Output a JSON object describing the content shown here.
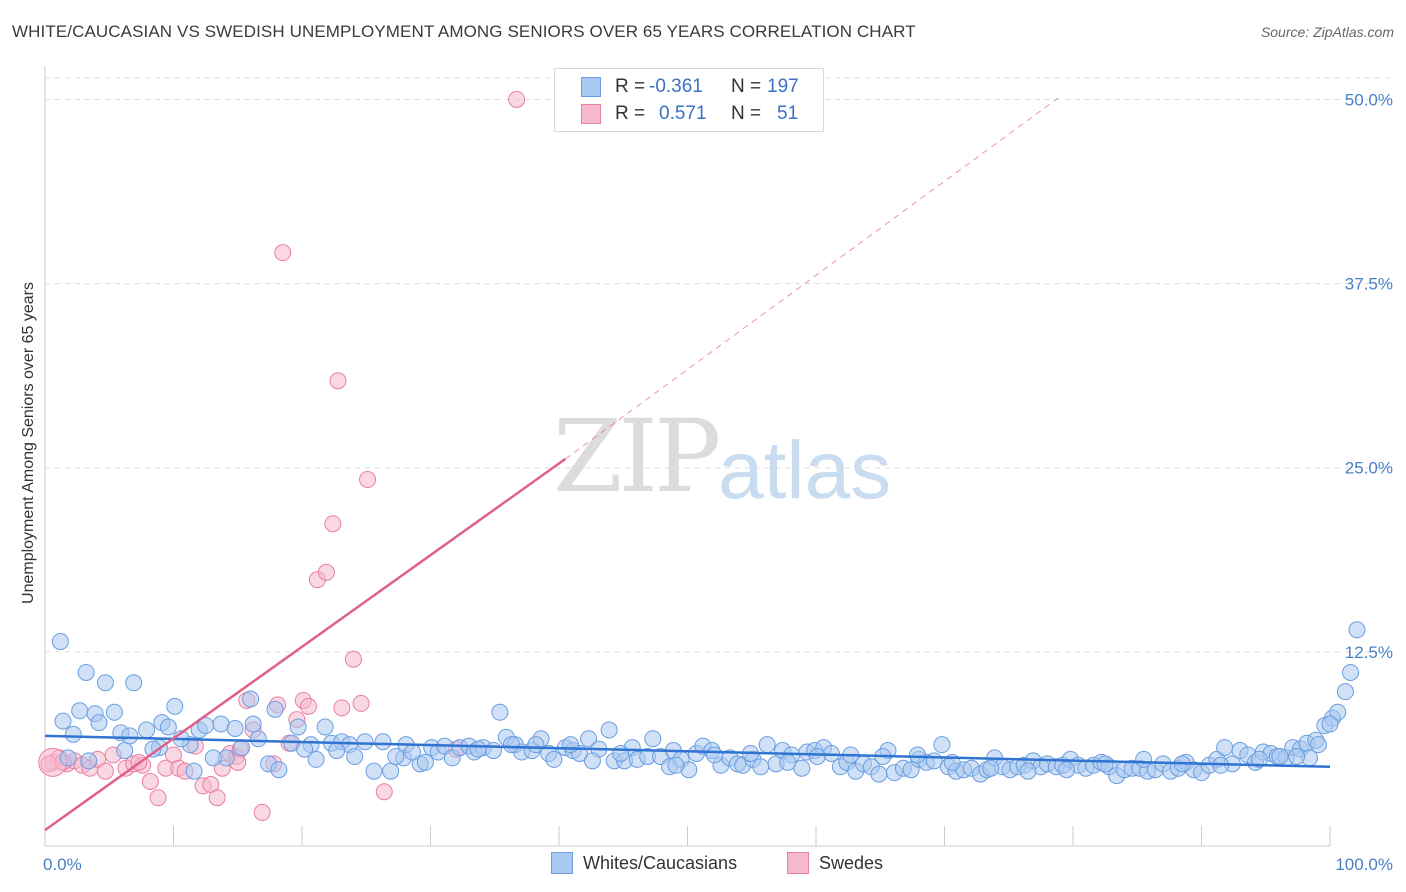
{
  "title": "WHITE/CAUCASIAN VS SWEDISH UNEMPLOYMENT AMONG SENIORS OVER 65 YEARS CORRELATION CHART",
  "source": "Source: ZipAtlas.com",
  "watermark": {
    "zip": "ZIP",
    "atlas": "atlas"
  },
  "legend": {
    "rows": [
      {
        "r_label": "R =",
        "r_value": "-0.361",
        "n_label": "N =",
        "n_value": "197"
      },
      {
        "r_label": "R =",
        "r_value": "0.571",
        "n_label": "N =",
        "n_value": "51"
      }
    ]
  },
  "bottom_legend": {
    "series1": "Whites/Caucasians",
    "series2": "Swedes"
  },
  "colors": {
    "blue_fill": "#a9c8f0",
    "blue_stroke": "#6a9ee0",
    "blue_line": "#2f74d0",
    "pink_fill": "#f6b8cc",
    "pink_stroke": "#e8809f",
    "pink_line": "#e0608a",
    "grid": "#dddddd",
    "tick_text": "#4a7fc8"
  },
  "chart_data": {
    "type": "scatter",
    "title": "WHITE/CAUCASIAN VS SWEDISH UNEMPLOYMENT AMONG SENIORS OVER 65 YEARS CORRELATION CHART",
    "xlabel": "",
    "ylabel": "Unemployment Among Seniors over 65 years",
    "xlim": [
      0,
      100
    ],
    "ylim": [
      0,
      52
    ],
    "x_tick_labels": [
      "0.0%",
      "100.0%"
    ],
    "y_ticks": [
      12.5,
      25.0,
      37.5,
      50.0
    ],
    "y_tick_labels": [
      "12.5%",
      "25.0%",
      "37.5%",
      "50.0%"
    ],
    "series": [
      {
        "name": "Whites/Caucasians",
        "r": -0.361,
        "n": 197,
        "trend": {
          "x0": 0,
          "y0": 6.8,
          "x1": 100,
          "y1": 4.7
        },
        "points": [
          [
            1.2,
            13.2
          ],
          [
            2.2,
            6.9
          ],
          [
            1.4,
            7.8
          ],
          [
            3.2,
            11.1
          ],
          [
            4.7,
            10.4
          ],
          [
            6.9,
            10.4
          ],
          [
            2.7,
            8.5
          ],
          [
            3.9,
            8.3
          ],
          [
            4.2,
            7.7
          ],
          [
            5.4,
            8.4
          ],
          [
            5.9,
            7.0
          ],
          [
            6.6,
            6.8
          ],
          [
            7.9,
            7.2
          ],
          [
            9.1,
            7.7
          ],
          [
            10.1,
            8.8
          ],
          [
            8.9,
            6.0
          ],
          [
            8.4,
            5.9
          ],
          [
            9.6,
            7.4
          ],
          [
            12.0,
            7.2
          ],
          [
            12.5,
            7.5
          ],
          [
            11.3,
            6.2
          ],
          [
            11.6,
            4.4
          ],
          [
            13.7,
            7.6
          ],
          [
            14.8,
            7.3
          ],
          [
            14.1,
            5.3
          ],
          [
            16.0,
            9.3
          ],
          [
            16.2,
            7.6
          ],
          [
            16.6,
            6.6
          ],
          [
            17.4,
            4.9
          ],
          [
            18.2,
            4.5
          ],
          [
            17.9,
            8.6
          ],
          [
            19.2,
            6.3
          ],
          [
            19.7,
            7.4
          ],
          [
            20.7,
            6.2
          ],
          [
            21.1,
            5.2
          ],
          [
            21.8,
            7.4
          ],
          [
            22.3,
            6.3
          ],
          [
            23.1,
            6.4
          ],
          [
            23.7,
            6.2
          ],
          [
            24.1,
            5.4
          ],
          [
            24.9,
            6.4
          ],
          [
            25.6,
            4.4
          ],
          [
            26.3,
            6.4
          ],
          [
            26.9,
            4.4
          ],
          [
            27.9,
            5.3
          ],
          [
            28.1,
            6.2
          ],
          [
            29.2,
            4.9
          ],
          [
            30.1,
            6.0
          ],
          [
            30.6,
            5.7
          ],
          [
            31.1,
            6.1
          ],
          [
            31.7,
            5.3
          ],
          [
            32.3,
            6.0
          ],
          [
            33.0,
            6.1
          ],
          [
            33.4,
            5.7
          ],
          [
            34.1,
            6.0
          ],
          [
            34.9,
            5.8
          ],
          [
            35.4,
            8.4
          ],
          [
            35.9,
            6.7
          ],
          [
            36.6,
            6.2
          ],
          [
            37.1,
            5.7
          ],
          [
            37.9,
            5.8
          ],
          [
            38.6,
            6.6
          ],
          [
            39.2,
            5.6
          ],
          [
            39.6,
            5.2
          ],
          [
            40.5,
            6.0
          ],
          [
            41.1,
            5.8
          ],
          [
            41.6,
            5.6
          ],
          [
            42.3,
            6.6
          ],
          [
            43.1,
            5.9
          ],
          [
            43.9,
            7.2
          ],
          [
            44.3,
            5.1
          ],
          [
            45.1,
            5.1
          ],
          [
            45.7,
            6.0
          ],
          [
            46.1,
            5.2
          ],
          [
            46.9,
            5.4
          ],
          [
            47.3,
            6.6
          ],
          [
            47.9,
            5.4
          ],
          [
            48.6,
            4.7
          ],
          [
            48.9,
            5.8
          ],
          [
            49.5,
            5.2
          ],
          [
            50.1,
            4.5
          ],
          [
            50.7,
            5.6
          ],
          [
            51.2,
            6.1
          ],
          [
            51.9,
            5.8
          ],
          [
            52.6,
            4.8
          ],
          [
            53.3,
            5.3
          ],
          [
            53.9,
            4.9
          ],
          [
            54.3,
            4.8
          ],
          [
            55.1,
            5.2
          ],
          [
            55.7,
            4.7
          ],
          [
            56.2,
            6.2
          ],
          [
            56.9,
            4.9
          ],
          [
            57.4,
            5.8
          ],
          [
            58.1,
            5.5
          ],
          [
            58.9,
            4.6
          ],
          [
            59.3,
            5.7
          ],
          [
            59.9,
            5.8
          ],
          [
            60.6,
            6.0
          ],
          [
            61.2,
            5.6
          ],
          [
            61.9,
            4.7
          ],
          [
            62.4,
            5.0
          ],
          [
            63.1,
            4.4
          ],
          [
            63.7,
            4.9
          ],
          [
            64.3,
            4.7
          ],
          [
            64.9,
            4.2
          ],
          [
            65.6,
            5.8
          ],
          [
            66.1,
            4.3
          ],
          [
            66.8,
            4.6
          ],
          [
            67.4,
            4.5
          ],
          [
            68.0,
            5.2
          ],
          [
            68.6,
            5.0
          ],
          [
            69.2,
            5.1
          ],
          [
            69.8,
            6.2
          ],
          [
            70.3,
            4.7
          ],
          [
            70.9,
            4.4
          ],
          [
            71.5,
            4.5
          ],
          [
            72.1,
            4.6
          ],
          [
            72.8,
            4.2
          ],
          [
            73.3,
            4.5
          ],
          [
            73.9,
            5.3
          ],
          [
            74.5,
            4.7
          ],
          [
            75.1,
            4.5
          ],
          [
            75.7,
            4.7
          ],
          [
            76.2,
            4.8
          ],
          [
            76.9,
            5.1
          ],
          [
            77.5,
            4.7
          ],
          [
            78.0,
            4.9
          ],
          [
            78.7,
            4.7
          ],
          [
            79.2,
            4.8
          ],
          [
            79.8,
            5.2
          ],
          [
            80.4,
            4.8
          ],
          [
            81.0,
            4.6
          ],
          [
            81.6,
            4.8
          ],
          [
            82.2,
            5.0
          ],
          [
            82.8,
            4.7
          ],
          [
            83.4,
            4.1
          ],
          [
            84.0,
            4.5
          ],
          [
            84.6,
            4.6
          ],
          [
            85.2,
            4.6
          ],
          [
            85.8,
            4.4
          ],
          [
            86.4,
            4.5
          ],
          [
            87.0,
            4.9
          ],
          [
            87.6,
            4.4
          ],
          [
            88.2,
            4.6
          ],
          [
            88.8,
            5.0
          ],
          [
            89.4,
            4.5
          ],
          [
            90.0,
            4.3
          ],
          [
            90.6,
            4.8
          ],
          [
            91.2,
            5.2
          ],
          [
            91.8,
            6.0
          ],
          [
            92.4,
            4.9
          ],
          [
            93.0,
            5.8
          ],
          [
            93.6,
            5.5
          ],
          [
            94.2,
            5.0
          ],
          [
            94.8,
            5.7
          ],
          [
            95.4,
            5.6
          ],
          [
            95.9,
            5.4
          ],
          [
            96.6,
            5.3
          ],
          [
            97.1,
            6.0
          ],
          [
            97.7,
            5.9
          ],
          [
            98.2,
            6.3
          ],
          [
            98.9,
            6.5
          ],
          [
            99.6,
            7.5
          ],
          [
            100.2,
            8.0
          ],
          [
            100.6,
            8.4
          ],
          [
            101.2,
            9.8
          ],
          [
            101.6,
            11.1
          ],
          [
            102.1,
            14.0
          ],
          [
            98.4,
            5.3
          ],
          [
            96.1,
            5.4
          ],
          [
            1.8,
            5.3
          ],
          [
            3.4,
            5.1
          ],
          [
            6.2,
            5.8
          ],
          [
            10.6,
            6.6
          ],
          [
            15.3,
            6.0
          ],
          [
            13.1,
            5.3
          ],
          [
            20.2,
            5.9
          ],
          [
            22.7,
            5.8
          ],
          [
            27.3,
            5.4
          ],
          [
            29.6,
            5.0
          ],
          [
            38.2,
            6.2
          ],
          [
            40.9,
            6.2
          ],
          [
            44.8,
            5.6
          ],
          [
            49.1,
            4.8
          ],
          [
            52.1,
            5.5
          ],
          [
            54.9,
            5.6
          ],
          [
            57.8,
            5.0
          ],
          [
            60.1,
            5.4
          ],
          [
            62.7,
            5.5
          ],
          [
            65.2,
            5.4
          ],
          [
            67.9,
            5.5
          ],
          [
            70.6,
            5.0
          ],
          [
            73.6,
            4.6
          ],
          [
            76.5,
            4.4
          ],
          [
            79.5,
            4.5
          ],
          [
            82.5,
            4.9
          ],
          [
            85.5,
            5.2
          ],
          [
            88.5,
            4.9
          ],
          [
            91.5,
            4.8
          ],
          [
            94.5,
            5.2
          ],
          [
            97.4,
            5.4
          ],
          [
            99.1,
            6.2
          ],
          [
            100.0,
            7.6
          ],
          [
            28.6,
            5.7
          ],
          [
            33.7,
            5.9
          ],
          [
            36.3,
            6.2
          ],
          [
            42.6,
            5.1
          ]
        ]
      },
      {
        "name": "Swedes",
        "r": 0.571,
        "n": 51,
        "trend": {
          "x0": 0,
          "y0": 0.4,
          "x1": 40.5,
          "y1": 25.6,
          "dashed_to": {
            "x": 79,
            "y": 50.2
          }
        },
        "points": [
          [
            0.6,
            5.0
          ],
          [
            1.1,
            5.3
          ],
          [
            1.7,
            4.9
          ],
          [
            2.3,
            5.1
          ],
          [
            2.9,
            4.8
          ],
          [
            3.5,
            4.6
          ],
          [
            4.1,
            5.2
          ],
          [
            4.7,
            4.4
          ],
          [
            5.3,
            5.5
          ],
          [
            6.3,
            4.6
          ],
          [
            6.9,
            4.9
          ],
          [
            7.6,
            4.8
          ],
          [
            8.2,
            3.7
          ],
          [
            8.8,
            2.6
          ],
          [
            9.4,
            4.6
          ],
          [
            10.0,
            5.5
          ],
          [
            10.4,
            4.6
          ],
          [
            10.9,
            4.4
          ],
          [
            11.7,
            6.1
          ],
          [
            12.3,
            3.4
          ],
          [
            12.9,
            3.5
          ],
          [
            13.4,
            2.6
          ],
          [
            13.8,
            4.6
          ],
          [
            14.4,
            5.6
          ],
          [
            14.9,
            5.4
          ],
          [
            15.2,
            5.9
          ],
          [
            15.7,
            9.2
          ],
          [
            16.2,
            7.2
          ],
          [
            16.9,
            1.6
          ],
          [
            17.8,
            4.9
          ],
          [
            18.1,
            8.9
          ],
          [
            18.5,
            39.6
          ],
          [
            19.0,
            6.3
          ],
          [
            19.6,
            7.9
          ],
          [
            20.1,
            9.2
          ],
          [
            20.5,
            8.8
          ],
          [
            21.2,
            17.4
          ],
          [
            21.9,
            17.9
          ],
          [
            22.4,
            21.2
          ],
          [
            22.8,
            30.9
          ],
          [
            23.1,
            8.7
          ],
          [
            24.0,
            12.0
          ],
          [
            24.6,
            9.0
          ],
          [
            25.1,
            24.2
          ],
          [
            26.4,
            3.0
          ],
          [
            32.0,
            5.9
          ],
          [
            36.7,
            50.0
          ],
          [
            0.3,
            4.9
          ],
          [
            1.4,
            5.0
          ],
          [
            7.3,
            5.0
          ],
          [
            15.0,
            5.0
          ]
        ]
      }
    ]
  }
}
